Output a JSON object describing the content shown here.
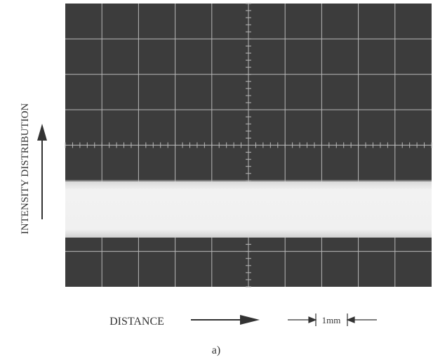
{
  "figure": {
    "y_label": "INTENSITY DISTRIBUTION",
    "x_label": "DISTANCE",
    "scale_label": "1mm",
    "caption": "a)"
  }
}
